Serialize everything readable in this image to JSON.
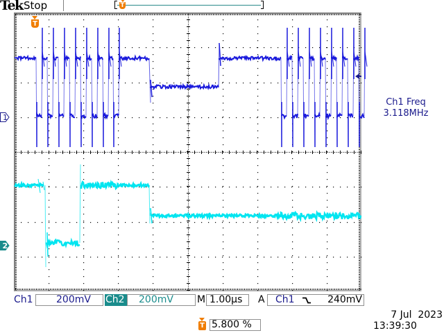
{
  "header": {
    "brand": "Tek",
    "acquisition_status": "Stop",
    "trigger_marker_label": "T"
  },
  "channels": {
    "ch1": {
      "marker": "1",
      "color": "#1a1adc",
      "label": "Ch1",
      "scale": "200mV"
    },
    "ch2": {
      "marker": "2",
      "color": "#00e5f0",
      "label": "Ch2",
      "scale": "200mV",
      "badge_color": "#1a8c8c"
    }
  },
  "measurement": {
    "name": "Ch1 Freq",
    "value": "3.118MHz"
  },
  "timebase": {
    "label": "M",
    "value": "1.00µs"
  },
  "trigger": {
    "mode": "A",
    "source": "Ch1",
    "slope_icon": "falling-edge-icon",
    "slope_glyph": "⿺",
    "level": "240mV",
    "position_label": "T",
    "position": "5.800 %"
  },
  "datetime": {
    "date": "7 Jul  2023",
    "time": "13:39:30"
  },
  "graticule": {
    "h_divisions": 10,
    "v_divisions": 8
  }
}
